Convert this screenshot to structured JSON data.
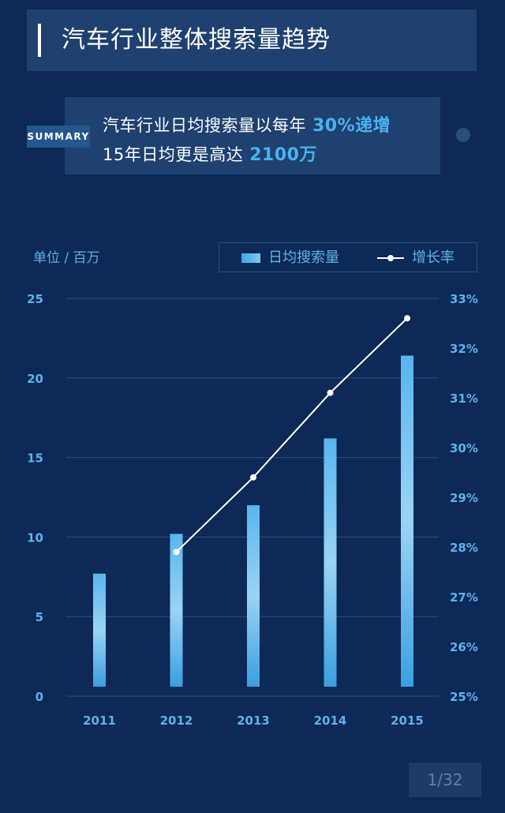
{
  "header": {
    "title": "汽车行业整体搜索量趋势"
  },
  "summary": {
    "tag": "SUMMARY",
    "line1_text": "汽车行业日均搜索量以每年",
    "line1_highlight": "30%递增",
    "line2_text": "15年日均更是高达",
    "line2_highlight": "2100万"
  },
  "unit_label": "单位 / 百万",
  "legend": {
    "bar_label": "日均搜索量",
    "line_label": "增长率"
  },
  "page_indicator": "1/32",
  "colors": {
    "background": "#0c2957",
    "panel": "#1e4170",
    "accent": "#48b3ef",
    "axis_text": "#5fb2e8",
    "line": "#ffffff"
  },
  "chart_data": {
    "type": "bar",
    "categories": [
      "2011",
      "2012",
      "2013",
      "2014",
      "2015"
    ],
    "series": [
      {
        "name": "日均搜索量",
        "type": "bar",
        "axis": "left",
        "values": [
          7.7,
          10.2,
          12.0,
          16.2,
          21.4
        ]
      },
      {
        "name": "增长率",
        "type": "line",
        "axis": "right",
        "values": [
          null,
          27.9,
          29.4,
          31.1,
          32.6
        ]
      }
    ],
    "y_left": {
      "min": 0,
      "max": 25,
      "ticks": [
        "0",
        "5",
        "10",
        "15",
        "20",
        "25"
      ]
    },
    "y_right": {
      "min": 25,
      "max": 33,
      "ticks": [
        "25%",
        "26%",
        "27%",
        "28%",
        "29%",
        "30%",
        "31%",
        "32%",
        "33%"
      ]
    },
    "grid": true,
    "legend_position": "top-right"
  }
}
